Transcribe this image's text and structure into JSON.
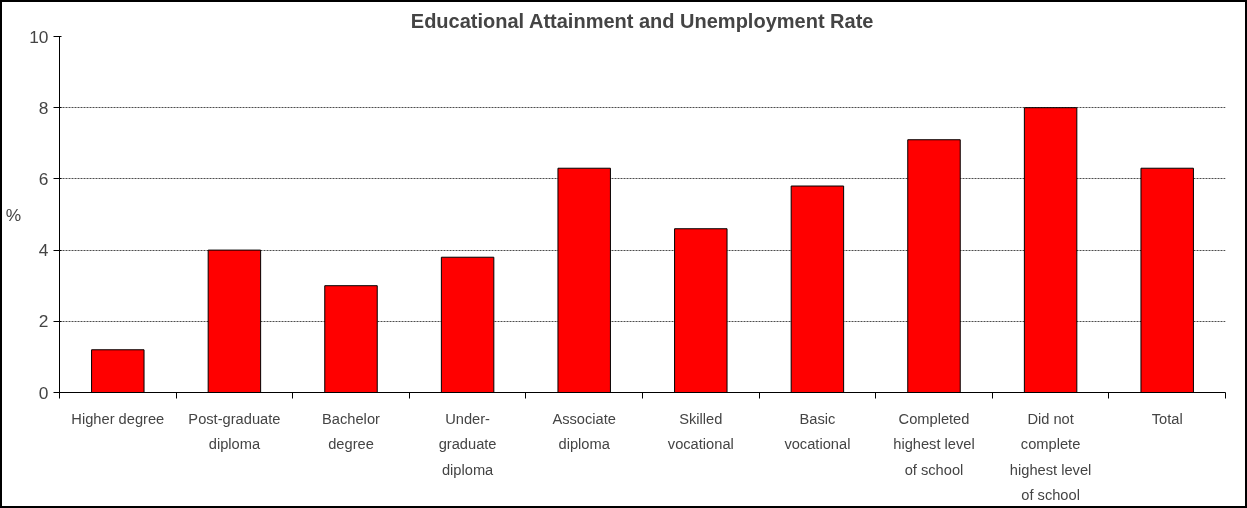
{
  "chart_data": {
    "type": "bar",
    "title": "Educational Attainment and Unemployment Rate",
    "ylabel": "%",
    "categories": [
      "Higher degree",
      "Post-graduate diploma",
      "Bachelor degree",
      "Under-graduate diploma",
      "Associate diploma",
      "Skilled vocational",
      "Basic vocational",
      "Completed highest level of school",
      "Did not complete highest level of school",
      "Total"
    ],
    "values": [
      1.2,
      4.0,
      3.0,
      3.8,
      6.3,
      4.6,
      5.8,
      7.1,
      8.0,
      6.3
    ],
    "color": "#ff0000",
    "ylim": [
      0,
      10
    ],
    "yticks": [
      0,
      2,
      4,
      6,
      8,
      10
    ],
    "grid": "y"
  }
}
